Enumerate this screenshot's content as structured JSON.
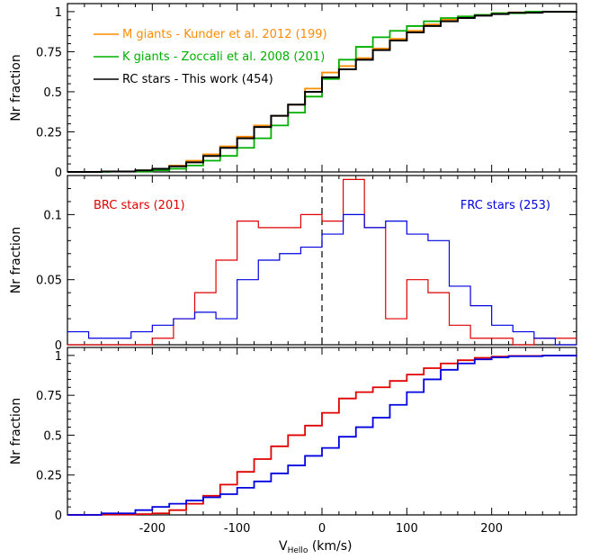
{
  "figure": {
    "xlabel_main": "V",
    "xlabel_sub": "Hello",
    "xlabel_unit": " (km/s)"
  },
  "chart_data": [
    {
      "type": "line",
      "step": true,
      "ylabel": "Nr fraction",
      "xlim": [
        -300,
        300
      ],
      "ylim": [
        0,
        1.05
      ],
      "yticks": [
        0,
        0.25,
        0.5,
        0.75,
        1
      ],
      "ytick_labels": [
        "0",
        "0.25",
        "0.5",
        "0.75",
        "1"
      ],
      "legend": [
        {
          "label": "M giants - Kunder et al. 2012 (199)",
          "color": "#ff8c00"
        },
        {
          "label": "K giants - Zoccali et al. 2008 (201)",
          "color": "#00b000"
        },
        {
          "label": "RC stars - This work (454)",
          "color": "#000000"
        }
      ],
      "series": [
        {
          "name": "M giants - Kunder et al. 2012 (199)",
          "color": "#ff8c00",
          "x": [
            -300,
            -260,
            -220,
            -200,
            -180,
            -160,
            -140,
            -120,
            -100,
            -80,
            -60,
            -40,
            -20,
            0,
            20,
            40,
            60,
            80,
            100,
            120,
            140,
            160,
            180,
            200,
            220,
            250,
            300
          ],
          "y": [
            0,
            0.003,
            0.01,
            0.02,
            0.04,
            0.07,
            0.11,
            0.16,
            0.22,
            0.29,
            0.35,
            0.42,
            0.52,
            0.62,
            0.66,
            0.71,
            0.77,
            0.83,
            0.88,
            0.92,
            0.95,
            0.97,
            0.98,
            0.99,
            0.995,
            1,
            1
          ]
        },
        {
          "name": "K giants - Zoccali et al. 2008 (201)",
          "color": "#00b000",
          "x": [
            -300,
            -250,
            -200,
            -180,
            -160,
            -140,
            -120,
            -100,
            -80,
            -60,
            -40,
            -20,
            0,
            20,
            40,
            60,
            80,
            100,
            120,
            140,
            160,
            180,
            200,
            240,
            300
          ],
          "y": [
            0,
            0.002,
            0.01,
            0.02,
            0.04,
            0.07,
            0.1,
            0.15,
            0.21,
            0.29,
            0.37,
            0.47,
            0.58,
            0.7,
            0.78,
            0.84,
            0.88,
            0.91,
            0.94,
            0.96,
            0.97,
            0.98,
            0.99,
            1,
            1
          ]
        },
        {
          "name": "RC stars - This work (454)",
          "color": "#000000",
          "x": [
            -300,
            -260,
            -220,
            -200,
            -180,
            -160,
            -140,
            -120,
            -100,
            -80,
            -60,
            -40,
            -20,
            0,
            20,
            40,
            60,
            80,
            100,
            120,
            140,
            160,
            180,
            200,
            220,
            260,
            300
          ],
          "y": [
            0,
            0.003,
            0.01,
            0.02,
            0.035,
            0.06,
            0.1,
            0.15,
            0.21,
            0.28,
            0.35,
            0.42,
            0.5,
            0.59,
            0.64,
            0.7,
            0.76,
            0.82,
            0.87,
            0.91,
            0.94,
            0.96,
            0.975,
            0.985,
            0.993,
            0.999,
            1
          ]
        }
      ]
    },
    {
      "type": "histogram",
      "ylabel": "Nr fraction",
      "xlim": [
        -300,
        300
      ],
      "ylim": [
        0,
        0.13
      ],
      "yticks": [
        0,
        0.05,
        0.1
      ],
      "ytick_labels": [
        "0",
        "0.05",
        "0.1"
      ],
      "bin_edges": [
        -300,
        -275,
        -250,
        -225,
        -200,
        -175,
        -150,
        -125,
        -100,
        -75,
        -50,
        -25,
        0,
        25,
        50,
        75,
        100,
        125,
        150,
        175,
        200,
        225,
        250,
        275,
        300
      ],
      "annotations": [
        {
          "text": "BRC stars (201)",
          "color": "#e00000"
        },
        {
          "text": "FRC stars (253)",
          "color": "#0000e0"
        }
      ],
      "vline_x": 0,
      "series": [
        {
          "name": "BRC stars (201)",
          "color": "#e00000",
          "counts": [
            0,
            0,
            0,
            0,
            0.005,
            0.02,
            0.04,
            0.065,
            0.095,
            0.09,
            0.09,
            0.1,
            0.095,
            0.127,
            0.09,
            0.02,
            0.05,
            0.04,
            0.015,
            0.005,
            0.005,
            0,
            0.005,
            0.005
          ]
        },
        {
          "name": "FRC stars (253)",
          "color": "#0000e0",
          "counts": [
            0.01,
            0.005,
            0.005,
            0.01,
            0.015,
            0.02,
            0.025,
            0.02,
            0.05,
            0.065,
            0.07,
            0.075,
            0.085,
            0.1,
            0.09,
            0.095,
            0.085,
            0.08,
            0.045,
            0.03,
            0.015,
            0.01,
            0.005,
            0
          ]
        }
      ]
    },
    {
      "type": "line",
      "step": true,
      "ylabel": "Nr fraction",
      "xlim": [
        -300,
        300
      ],
      "ylim": [
        0,
        1.05
      ],
      "yticks": [
        0,
        0.25,
        0.5,
        0.75,
        1
      ],
      "ytick_labels": [
        "0",
        "0.25",
        "0.5",
        "0.75",
        "1"
      ],
      "xticks": [
        -200,
        -100,
        0,
        100,
        200
      ],
      "xtick_labels": [
        "-200",
        "-100",
        "0",
        "100",
        "200"
      ],
      "series": [
        {
          "name": "BRC stars",
          "color": "#e00000",
          "x": [
            -300,
            -260,
            -220,
            -200,
            -180,
            -160,
            -140,
            -120,
            -100,
            -80,
            -60,
            -40,
            -20,
            0,
            20,
            40,
            60,
            80,
            100,
            120,
            140,
            160,
            180,
            200,
            220,
            260,
            300
          ],
          "y": [
            0,
            0.002,
            0.005,
            0.01,
            0.03,
            0.07,
            0.12,
            0.19,
            0.27,
            0.35,
            0.43,
            0.5,
            0.56,
            0.64,
            0.73,
            0.77,
            0.8,
            0.84,
            0.88,
            0.92,
            0.95,
            0.97,
            0.985,
            0.993,
            0.997,
            1,
            1
          ]
        },
        {
          "name": "FRC stars",
          "color": "#0000e0",
          "x": [
            -300,
            -260,
            -220,
            -200,
            -180,
            -160,
            -140,
            -120,
            -100,
            -80,
            -60,
            -40,
            -20,
            0,
            20,
            40,
            60,
            80,
            100,
            120,
            140,
            160,
            180,
            200,
            220,
            260,
            300
          ],
          "y": [
            0,
            0.01,
            0.03,
            0.05,
            0.07,
            0.09,
            0.11,
            0.13,
            0.17,
            0.21,
            0.26,
            0.31,
            0.37,
            0.42,
            0.49,
            0.55,
            0.61,
            0.69,
            0.77,
            0.85,
            0.91,
            0.95,
            0.975,
            0.988,
            0.995,
            0.999,
            1
          ]
        }
      ]
    }
  ]
}
